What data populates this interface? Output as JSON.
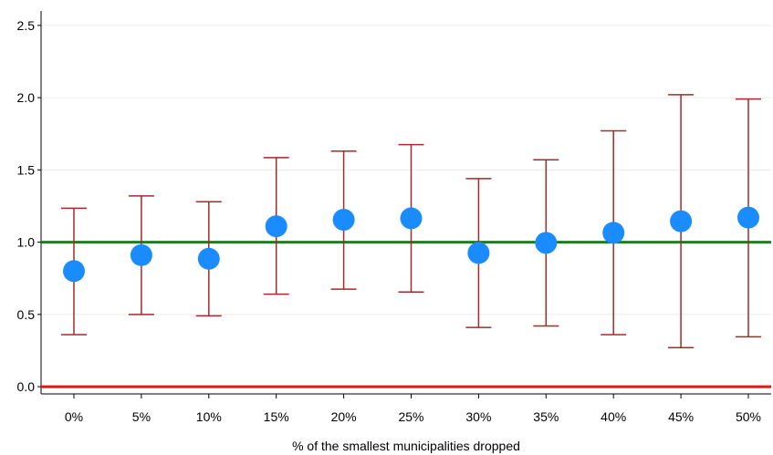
{
  "chart_data": {
    "type": "scatter",
    "title": "",
    "xlabel": "% of the smallest municipalities dropped",
    "ylabel": "",
    "categories": [
      "0%",
      "5%",
      "10%",
      "15%",
      "20%",
      "25%",
      "30%",
      "35%",
      "40%",
      "45%",
      "50%"
    ],
    "series": [
      {
        "values": [
          0.8,
          0.91,
          0.885,
          1.11,
          1.155,
          1.165,
          0.925,
          0.995,
          1.065,
          1.145,
          1.17
        ],
        "lower": [
          0.36,
          0.5,
          0.49,
          0.64,
          0.675,
          0.655,
          0.41,
          0.42,
          0.36,
          0.27,
          0.345
        ],
        "upper": [
          1.235,
          1.32,
          1.28,
          1.585,
          1.63,
          1.675,
          1.44,
          1.57,
          1.77,
          2.02,
          1.99
        ]
      }
    ],
    "ylim": [
      -0.05,
      2.6
    ],
    "yticks": [
      "0.0",
      "0.5",
      "1.0",
      "1.5",
      "2.0",
      "2.5"
    ],
    "reference_lines": [
      {
        "y": 1.0,
        "color": "#1e7d1e"
      },
      {
        "y": 0.0,
        "color": "#e8140e"
      }
    ],
    "grid": true,
    "colors": {
      "points": "#1a8cff",
      "error_bars": "#a52a2a",
      "grid": "#ececec"
    }
  }
}
